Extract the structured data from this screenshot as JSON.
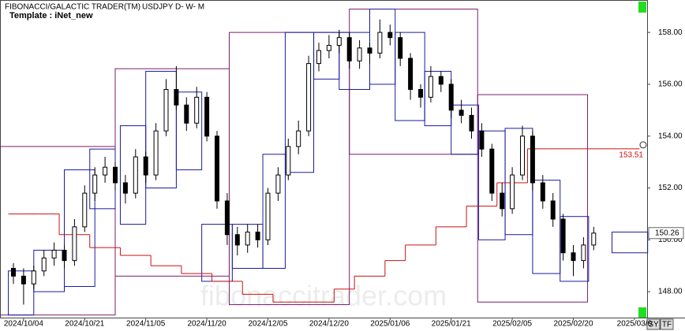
{
  "header": {
    "title": "FIBONACCI/GALACTIC TRADER(TM)",
    "symbol": "USDJPY D- W- M",
    "template": "Template : iNet_new"
  },
  "watermark": "fibonaccitrader.com",
  "buttons": [
    "SY",
    "TF"
  ],
  "chart_data": {
    "type": "candlestick",
    "categories": [
      null,
      "2024/10/04",
      null,
      null,
      null,
      null,
      null,
      "2024/10/21",
      null,
      null,
      null,
      null,
      null,
      "2024/11/05",
      null,
      null,
      null,
      null,
      null,
      "2024/11/20",
      null,
      null,
      null,
      null,
      null,
      "2024/12/05",
      null,
      null,
      null,
      null,
      null,
      "2024/12/20",
      null,
      null,
      null,
      null,
      null,
      "2025/01/06",
      null,
      null,
      null,
      null,
      null,
      "2025/01/21",
      null,
      null,
      null,
      null,
      null,
      "2025/02/05",
      null,
      null,
      null,
      null,
      null,
      "2025/02/20",
      null,
      null,
      null,
      null,
      null,
      "2025/03/0"
    ],
    "ohlc": [
      [
        148.9,
        149.1,
        148.3,
        148.6
      ],
      [
        148.6,
        148.9,
        147.5,
        148.3
      ],
      [
        148.3,
        149.0,
        148.1,
        148.8
      ],
      [
        148.8,
        149.6,
        148.6,
        149.3
      ],
      [
        149.3,
        149.9,
        149.0,
        149.6
      ],
      [
        149.6,
        149.8,
        148.9,
        149.2
      ],
      [
        149.2,
        150.8,
        149.0,
        150.5
      ],
      [
        150.5,
        152.1,
        150.3,
        151.8
      ],
      [
        151.8,
        152.8,
        151.5,
        152.5
      ],
      [
        152.5,
        153.2,
        152.2,
        152.8
      ],
      [
        152.8,
        153.0,
        151.9,
        152.2
      ],
      [
        152.2,
        152.5,
        151.4,
        151.8
      ],
      [
        151.8,
        153.5,
        151.6,
        153.2
      ],
      [
        153.2,
        153.4,
        152.2,
        152.5
      ],
      [
        152.5,
        154.5,
        152.3,
        154.2
      ],
      [
        154.2,
        156.2,
        154.0,
        155.8
      ],
      [
        155.8,
        156.7,
        155.0,
        155.2
      ],
      [
        155.2,
        155.5,
        154.2,
        154.5
      ],
      [
        154.5,
        155.9,
        154.3,
        155.5
      ],
      [
        155.5,
        155.7,
        153.8,
        154.0
      ],
      [
        154.0,
        154.2,
        151.2,
        151.5
      ],
      [
        151.5,
        151.8,
        149.8,
        150.2
      ],
      [
        150.2,
        150.5,
        149.4,
        149.8
      ],
      [
        149.8,
        150.6,
        149.5,
        150.3
      ],
      [
        150.3,
        150.6,
        149.7,
        150.0
      ],
      [
        150.0,
        152.0,
        149.8,
        151.8
      ],
      [
        151.8,
        152.8,
        151.5,
        152.5
      ],
      [
        152.5,
        153.9,
        152.3,
        153.6
      ],
      [
        153.6,
        154.6,
        153.3,
        154.2
      ],
      [
        154.2,
        157.1,
        154.0,
        156.8
      ],
      [
        156.8,
        157.6,
        156.5,
        157.3
      ],
      [
        157.3,
        157.9,
        157.0,
        157.5
      ],
      [
        157.5,
        158.1,
        157.2,
        157.8
      ],
      [
        157.8,
        158.0,
        156.6,
        156.9
      ],
      [
        156.9,
        157.7,
        156.6,
        157.4
      ],
      [
        157.4,
        157.6,
        156.8,
        157.2
      ],
      [
        157.2,
        158.5,
        157.0,
        158.0
      ],
      [
        158.0,
        158.3,
        157.5,
        157.8
      ],
      [
        157.8,
        158.0,
        156.7,
        157.0
      ],
      [
        157.0,
        157.2,
        155.4,
        155.8
      ],
      [
        155.8,
        156.0,
        155.1,
        155.5
      ],
      [
        155.5,
        156.7,
        155.3,
        156.3
      ],
      [
        156.3,
        156.5,
        155.7,
        156.0
      ],
      [
        156.0,
        156.2,
        154.7,
        155.0
      ],
      [
        155.0,
        155.4,
        154.5,
        154.8
      ],
      [
        154.8,
        155.1,
        153.9,
        154.2
      ],
      [
        154.2,
        154.5,
        153.2,
        153.5
      ],
      [
        153.5,
        153.7,
        151.5,
        151.8
      ],
      [
        151.8,
        152.2,
        150.9,
        151.2
      ],
      [
        151.2,
        152.8,
        151.0,
        152.5
      ],
      [
        152.5,
        154.4,
        152.3,
        154.0
      ],
      [
        154.0,
        154.2,
        151.9,
        152.2
      ],
      [
        152.2,
        152.5,
        151.2,
        151.5
      ],
      [
        151.5,
        151.8,
        150.5,
        150.8
      ],
      [
        150.8,
        151.0,
        149.2,
        149.5
      ],
      [
        149.5,
        149.8,
        148.6,
        149.2
      ],
      [
        149.2,
        150.1,
        148.9,
        149.8
      ],
      [
        149.8,
        150.5,
        149.6,
        150.26
      ],
      null,
      null,
      null,
      null
    ],
    "ylim": [
      147.0,
      159.25
    ],
    "yticks": [
      {
        "value": 148,
        "label": "148.00"
      },
      {
        "value": 150,
        "label": "150.00"
      },
      {
        "value": 152,
        "label": "152.00"
      },
      {
        "value": 154,
        "label": "154.00"
      },
      {
        "value": 156,
        "label": "156.00"
      },
      {
        "value": 158,
        "label": "158.00"
      }
    ],
    "weekly_boxes": {
      "color": "#1c1c9e",
      "boxes": [
        {
          "from": -0.5,
          "to": 2,
          "high": 148.8,
          "low": 147.1
        },
        {
          "from": 2,
          "to": 5,
          "high": 149.6,
          "low": 148.0
        },
        {
          "from": 5,
          "to": 8,
          "high": 152.7,
          "low": 148.2
        },
        {
          "from": 7.5,
          "to": 10,
          "high": 153.5,
          "low": 151.2
        },
        {
          "from": 10.5,
          "to": 13,
          "high": 154.4,
          "low": 150.6
        },
        {
          "from": 13,
          "to": 16,
          "high": 156.5,
          "low": 152.0
        },
        {
          "from": 16,
          "to": 18.5,
          "high": 155.7,
          "low": 152.7
        },
        {
          "from": 18.5,
          "to": 21.5,
          "high": 150.6,
          "low": 148.4
        },
        {
          "from": 21.5,
          "to": 24.5,
          "high": 150.6,
          "low": 148.9
        },
        {
          "from": 24.5,
          "to": 26.7,
          "high": 153.3,
          "low": 148.9
        },
        {
          "from": 26.7,
          "to": 29.5,
          "high": 158.0,
          "low": 152.6
        },
        {
          "from": 29.5,
          "to": 32,
          "high": 158.0,
          "low": 156.2
        },
        {
          "from": 32,
          "to": 35,
          "high": 158.0,
          "low": 155.8
        },
        {
          "from": 35,
          "to": 37.5,
          "high": 158.9,
          "low": 156.0
        },
        {
          "from": 37.5,
          "to": 40.4,
          "high": 158.0,
          "low": 154.6
        },
        {
          "from": 40.4,
          "to": 43,
          "high": 156.5,
          "low": 154.4
        },
        {
          "from": 43,
          "to": 45.7,
          "high": 155.2,
          "low": 153.3
        },
        {
          "from": 45.7,
          "to": 48.3,
          "high": 154.2,
          "low": 150.0
        },
        {
          "from": 48.3,
          "to": 51,
          "high": 154.3,
          "low": 150.2
        },
        {
          "from": 51,
          "to": 53.7,
          "high": 152.3,
          "low": 148.7
        },
        {
          "from": 53.7,
          "to": 56.5,
          "high": 150.9,
          "low": 148.4
        },
        {
          "from": 58.8,
          "to": 62.3,
          "high": 150.3,
          "low": 149.5
        }
      ]
    },
    "monthly_boxes": {
      "color": "#7a1f6c",
      "boxes": [
        {
          "from": -1.5,
          "to": 10,
          "high": 153.6,
          "low": 147.1
        },
        {
          "from": 10,
          "to": 21.2,
          "high": 156.6,
          "low": 148.6
        },
        {
          "from": 21.2,
          "to": 33,
          "high": 158.0,
          "low": 147.5
        },
        {
          "from": 33,
          "to": 45.6,
          "high": 158.9,
          "low": 153.3
        },
        {
          "from": 45.6,
          "to": 56.4,
          "high": 155.6,
          "low": 147.6
        }
      ]
    },
    "level_line": {
      "color": "#cc1111",
      "values": [
        151.0,
        151.0,
        151.0,
        151.0,
        151.0,
        150.2,
        150.2,
        150.2,
        149.7,
        149.7,
        149.7,
        149.4,
        149.4,
        149.4,
        149.0,
        149.0,
        149.0,
        148.7,
        148.7,
        148.7,
        148.4,
        148.4,
        148.4,
        147.9,
        147.9,
        147.9,
        147.6,
        147.6,
        147.6,
        147.6,
        147.6,
        147.6,
        148.1,
        148.1,
        148.6,
        148.6,
        148.6,
        149.2,
        149.2,
        149.8,
        149.8,
        149.8,
        150.5,
        150.5,
        150.5,
        151.3,
        151.3,
        151.3,
        152.2,
        152.2,
        152.2,
        153.51,
        153.51,
        153.51,
        153.51,
        153.51,
        153.51,
        153.51,
        153.51,
        153.51,
        153.51,
        153.51
      ],
      "last": 153.51
    },
    "last_price": 150.26
  }
}
